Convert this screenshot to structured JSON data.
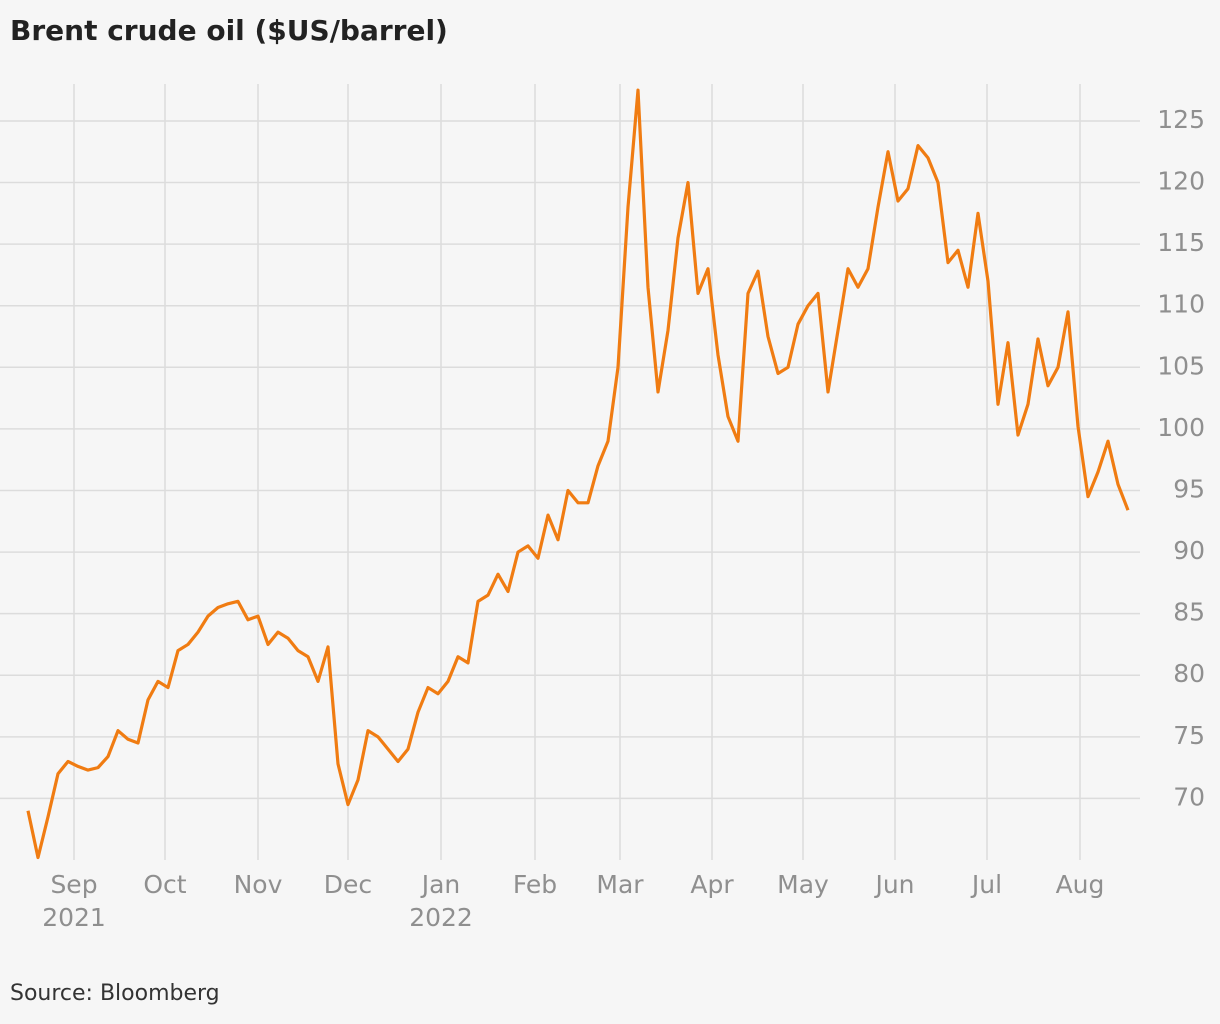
{
  "chart_data": {
    "type": "line",
    "title": "Brent crude oil ($US/barrel)",
    "source": "Source: Bloomberg",
    "series": [
      {
        "name": "Brent crude",
        "color": "#f07c12",
        "values": [
          69,
          65.2,
          68.5,
          72,
          73,
          72.6,
          72.3,
          72.5,
          73.4,
          75.5,
          74.8,
          74.5,
          78,
          79.5,
          79,
          82,
          82.5,
          83.5,
          84.8,
          85.5,
          85.8,
          86,
          84.5,
          84.8,
          82.5,
          83.5,
          83,
          82,
          81.5,
          79.5,
          82.3,
          72.8,
          69.5,
          71.5,
          75.5,
          75,
          74,
          73,
          74,
          77,
          79,
          78.5,
          79.5,
          81.5,
          81,
          86,
          86.5,
          88.2,
          86.8,
          90,
          90.5,
          89.5,
          93,
          91,
          95,
          94,
          94,
          97,
          99,
          105,
          118,
          127.5,
          111.5,
          103,
          108,
          115.5,
          120,
          111,
          113,
          106,
          101,
          99,
          111,
          112.8,
          107.5,
          104.5,
          105,
          108.5,
          110,
          111,
          103,
          108,
          113,
          111.5,
          113,
          118,
          122.5,
          118.5,
          119.5,
          123,
          122,
          120,
          113.5,
          114.5,
          111.5,
          117.5,
          112,
          102,
          107,
          99.5,
          102,
          107.3,
          103.5,
          105,
          109.5,
          100.2,
          94.5,
          96.5,
          99,
          95.5,
          93.4
        ]
      }
    ],
    "xlim": [
      0,
      110
    ],
    "xticks": [
      {
        "value": 4.6,
        "label": "Sep",
        "sublabel": "2021"
      },
      {
        "value": 13.7,
        "label": "Oct"
      },
      {
        "value": 23,
        "label": "Nov"
      },
      {
        "value": 32,
        "label": "Dec"
      },
      {
        "value": 41.3,
        "label": "Jan",
        "sublabel": "2022"
      },
      {
        "value": 50.7,
        "label": "Feb"
      },
      {
        "value": 59.2,
        "label": "Mar"
      },
      {
        "value": 68.4,
        "label": "Apr"
      },
      {
        "value": 77.5,
        "label": "May"
      },
      {
        "value": 86.7,
        "label": "Jun"
      },
      {
        "value": 95.9,
        "label": "Jul"
      },
      {
        "value": 105.2,
        "label": "Aug"
      }
    ],
    "ylim": [
      65,
      128
    ],
    "yticks": [
      70,
      75,
      80,
      85,
      90,
      95,
      100,
      105,
      110,
      115,
      120,
      125
    ],
    "grid": true
  }
}
